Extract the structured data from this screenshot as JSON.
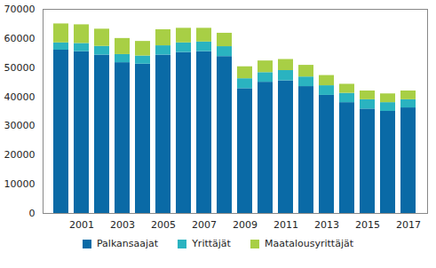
{
  "chart_data": {
    "type": "bar",
    "stacked": true,
    "grid": false,
    "legend": "bottom",
    "categories": [
      null,
      "2001",
      null,
      "2003",
      null,
      "2005",
      null,
      "2007",
      null,
      "2009",
      null,
      "2011",
      null,
      "2013",
      null,
      "2015",
      null,
      "2017"
    ],
    "series": [
      {
        "name": "Palkansaajat",
        "color": "#0a6aa6",
        "values": [
          56000,
          55500,
          54300,
          51700,
          51200,
          54300,
          55200,
          55500,
          53800,
          42800,
          45000,
          45500,
          43500,
          40500,
          38000,
          35800,
          35000,
          36200
        ]
      },
      {
        "name": "Yrittäjät",
        "color": "#2ab3c0",
        "values": [
          2500,
          2800,
          3000,
          2800,
          2800,
          3200,
          3300,
          3300,
          3400,
          3400,
          3300,
          3500,
          3300,
          3300,
          3200,
          3200,
          3000,
          2800
        ]
      },
      {
        "name": "Maatalousyrittäjät",
        "color": "#a8cf45",
        "values": [
          6500,
          6400,
          5900,
          5500,
          5000,
          5500,
          5000,
          4700,
          4600,
          4100,
          4000,
          3800,
          4000,
          3500,
          3100,
          3000,
          3000,
          3000
        ]
      }
    ],
    "ylim": [
      0,
      70000
    ],
    "yticks": [
      0,
      10000,
      20000,
      30000,
      40000,
      50000,
      60000,
      70000
    ]
  }
}
